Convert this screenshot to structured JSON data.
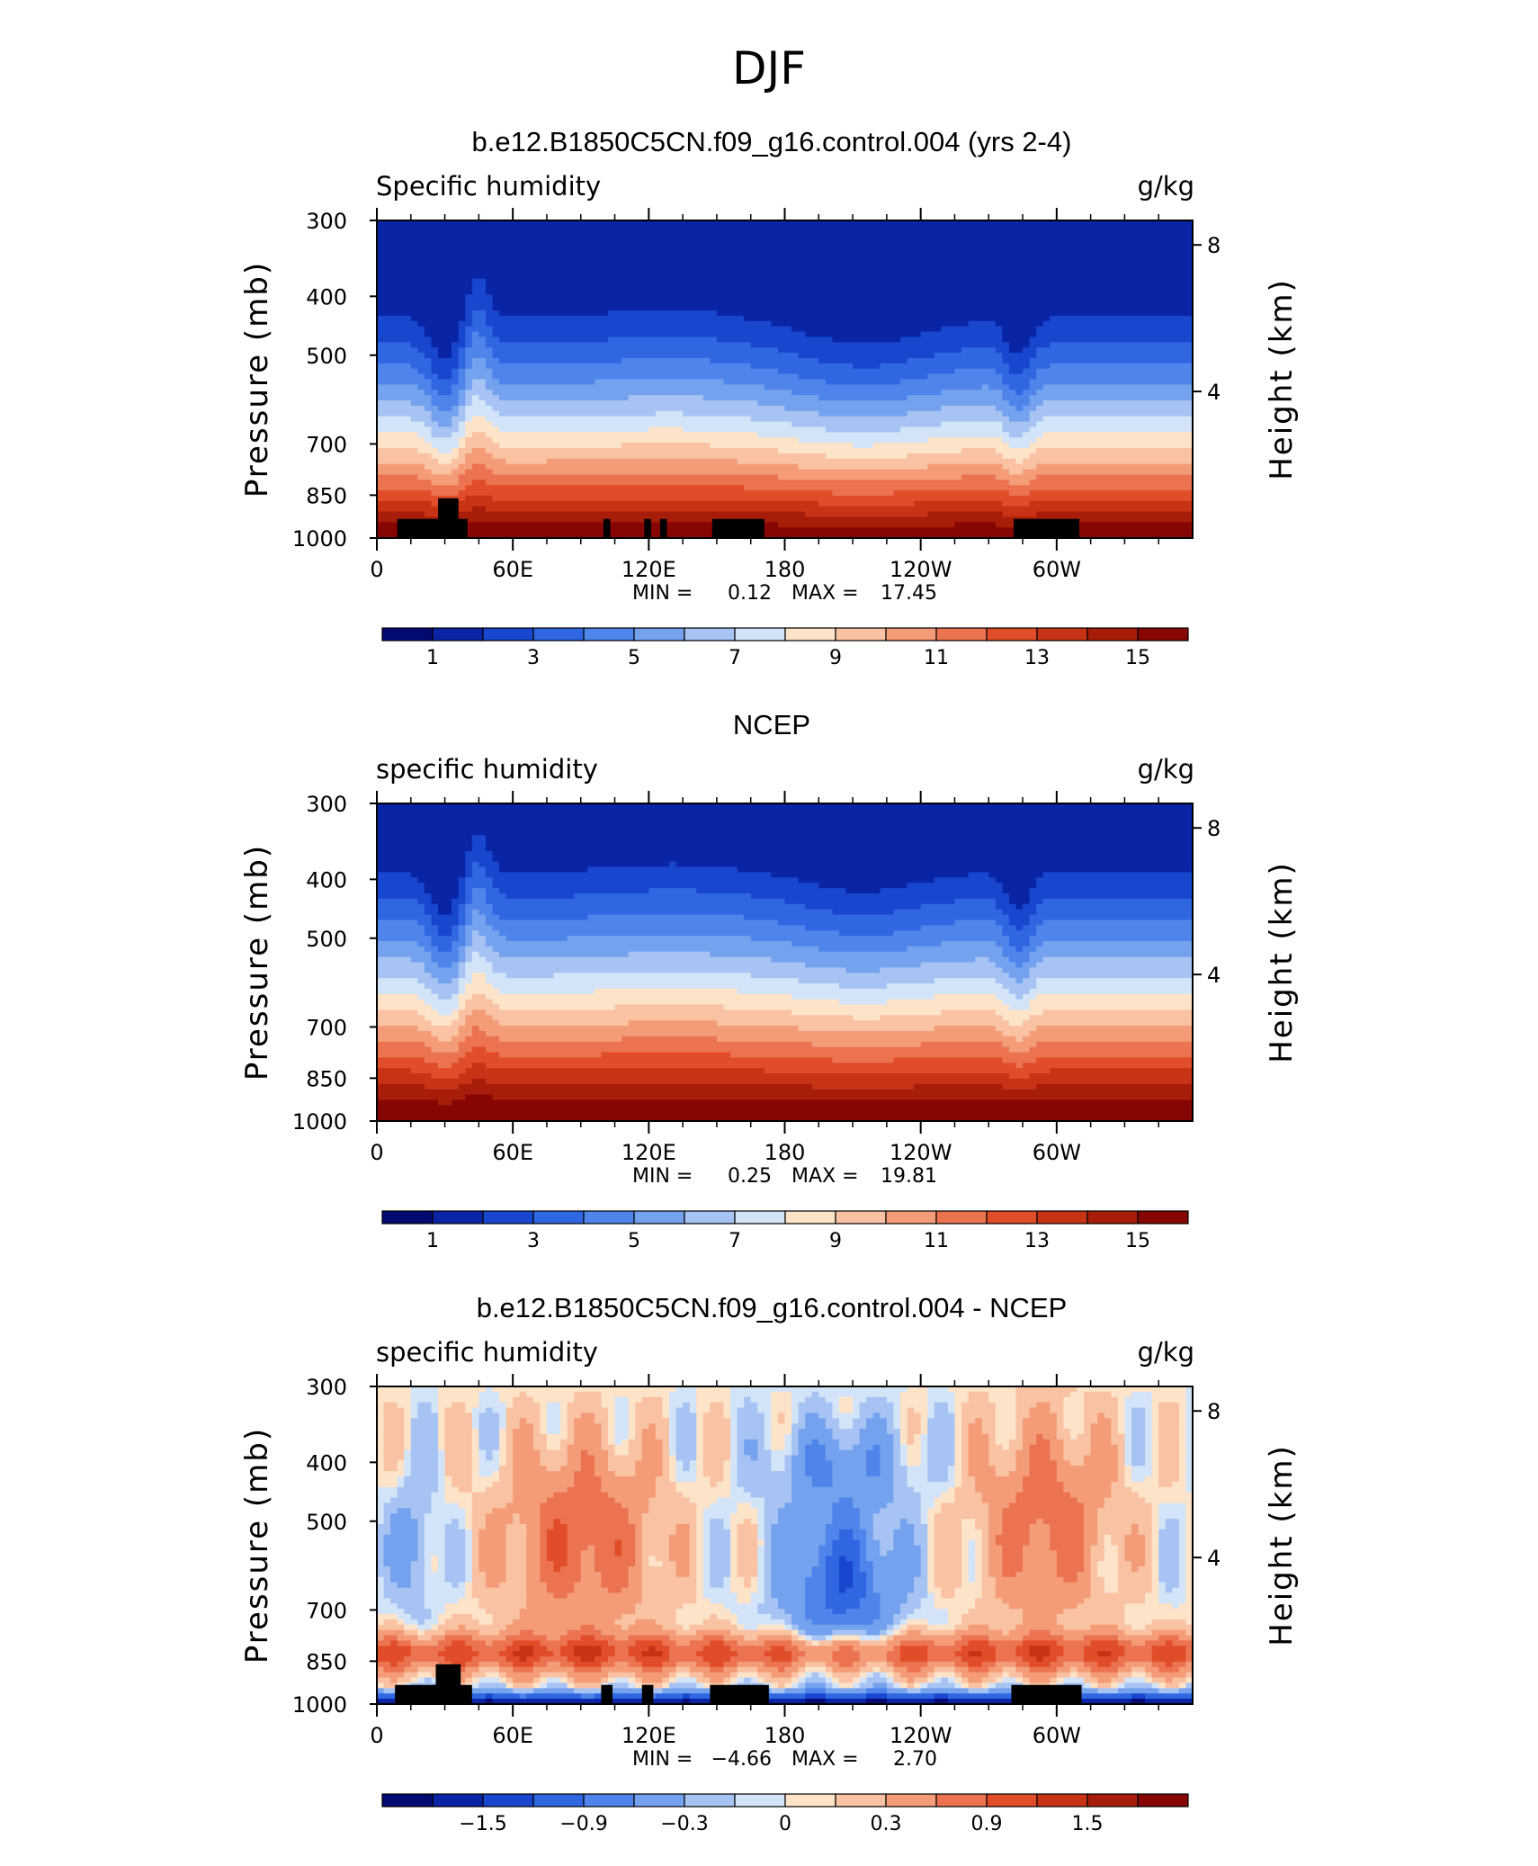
{
  "chart_data": {
    "type": "contour",
    "title": "DJF",
    "variable": "specific humidity",
    "units": "g/kg",
    "y_axis": {
      "label": "Pressure (mb)",
      "ticks": [
        "300",
        "400",
        "500",
        "700",
        "850",
        "1000"
      ],
      "range_mb": [
        1000,
        300
      ],
      "scale": "log"
    },
    "y2_axis": {
      "label": "Height (km)",
      "ticks": [
        "8",
        "4"
      ]
    },
    "x_axis": {
      "ticks": [
        "0",
        "60E",
        "120E",
        "180",
        "120W",
        "60W"
      ],
      "range_deg_east": [
        0,
        360
      ]
    },
    "panels": [
      {
        "title": "b.e12.B1850C5CN.f09_g16.control.004 (yrs 2-4)",
        "left_label": "Specific humidity",
        "right_label": "g/kg",
        "min_label": "MIN =",
        "min_value": "0.12",
        "max_label": "MAX =",
        "max_value": "17.45",
        "colorbar_labels": [
          "1",
          "3",
          "5",
          "7",
          "9",
          "11",
          "13",
          "15"
        ],
        "colorbar_colors": [
          "#030a72",
          "#0a24a6",
          "#1846cf",
          "#2f66e2",
          "#4f85ea",
          "#74a2ee",
          "#a6c3f3",
          "#d4e4f8",
          "#fde3c8",
          "#f9c2a2",
          "#f49c78",
          "#ec7350",
          "#e04d28",
          "#c83315",
          "#a81d0a",
          "#850602"
        ],
        "ground": true
      },
      {
        "title": "NCEP",
        "left_label": "specific humidity",
        "right_label": "g/kg",
        "min_label": "MIN =",
        "min_value": "0.25",
        "max_label": "MAX =",
        "max_value": "19.81",
        "colorbar_labels": [
          "1",
          "3",
          "5",
          "7",
          "9",
          "11",
          "13",
          "15"
        ],
        "colorbar_colors": [
          "#030a72",
          "#0a24a6",
          "#1846cf",
          "#2f66e2",
          "#4f85ea",
          "#74a2ee",
          "#a6c3f3",
          "#d4e4f8",
          "#fde3c8",
          "#f9c2a2",
          "#f49c78",
          "#ec7350",
          "#e04d28",
          "#c83315",
          "#a81d0a",
          "#850602"
        ],
        "ground": false
      },
      {
        "title": "b.e12.B1850C5CN.f09_g16.control.004 - NCEP",
        "left_label": "specific humidity",
        "right_label": "g/kg",
        "min_label": "MIN =",
        "min_value": "−4.66",
        "max_label": "MAX =",
        "max_value": "2.70",
        "colorbar_labels": [
          "−1.5",
          "−0.9",
          "−0.3",
          "0",
          "0.3",
          "0.9",
          "1.5"
        ],
        "colorbar_colors": [
          "#030a72",
          "#0a24a6",
          "#1846cf",
          "#2f66e2",
          "#4f85ea",
          "#74a2ee",
          "#a6c3f3",
          "#d4e4f8",
          "#fde3c8",
          "#f9c2a2",
          "#f49c78",
          "#ec7350",
          "#e04d28",
          "#c83315",
          "#a81d0a",
          "#850602"
        ],
        "ground": true
      }
    ]
  }
}
